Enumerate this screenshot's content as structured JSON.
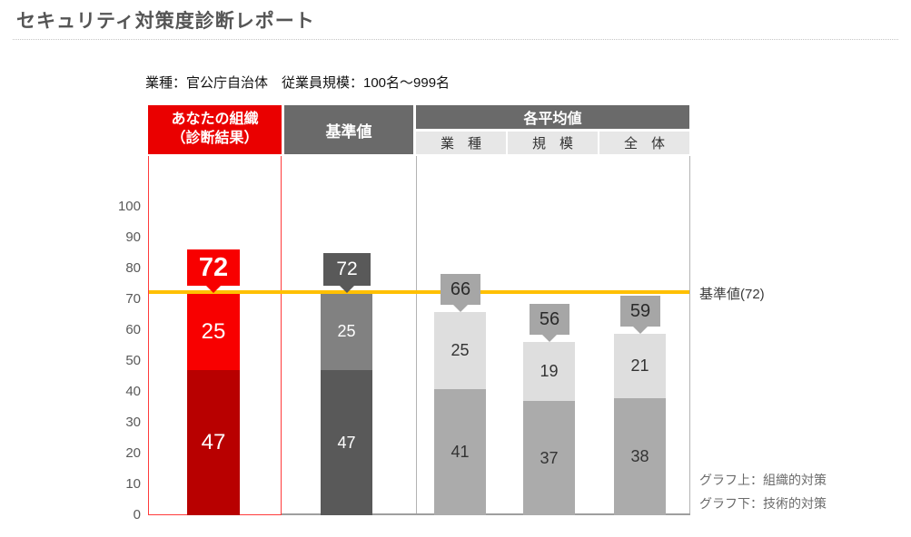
{
  "page_title": "セキュリティ対策度診断レポート",
  "subtitle": "業種：官公庁自治体　従業員規模：100名〜999名",
  "header": {
    "your_org_line1": "あなたの組織",
    "your_org_line2": "（診断結果）",
    "baseline": "基準値",
    "averages": "各平均値",
    "avg_columns": [
      "業　種",
      "規　模",
      "全　体"
    ]
  },
  "annotations": {
    "reference_line_label": "基準値(72)",
    "legend_top": "グラフ上：組織的対策",
    "legend_bottom": "グラフ下：技術的対策"
  },
  "colors": {
    "accent_red": "#ea0000",
    "bright_red": "#f80000",
    "dark_red": "#b80000",
    "header_gray": "#6a6a6a",
    "baseline_dark_gray": "#595959",
    "baseline_mid_gray": "#818181",
    "avg_light_gray": "#dedede",
    "avg_mid_gray": "#ababab",
    "avg_callout_gray": "#a6a6a6",
    "reference_line_yellow": "#ffc000"
  },
  "chart_data": {
    "type": "bar",
    "stacked": true,
    "title": "セキュリティ対策度診断レポート",
    "ylim": [
      0,
      100
    ],
    "y_ticks": [
      100,
      90,
      80,
      70,
      60,
      50,
      40,
      30,
      20,
      10,
      0
    ],
    "grid": false,
    "reference_line": {
      "value": 72,
      "label": "基準値(72)",
      "color": "#ffc000"
    },
    "segment_legend": {
      "top": "組織的対策",
      "bottom": "技術的対策"
    },
    "categories": [
      "あなたの組織（診断結果）",
      "基準値",
      "業種",
      "規模",
      "全体"
    ],
    "columns": [
      {
        "id": "your-org",
        "label": "あなたの組織（診断結果）",
        "total": 72,
        "top": 25,
        "bottom": 47
      },
      {
        "id": "baseline",
        "label": "基準値",
        "total": 72,
        "top": 25,
        "bottom": 47
      },
      {
        "id": "industry-avg",
        "label": "業種",
        "total": 66,
        "top": 25,
        "bottom": 41
      },
      {
        "id": "size-avg",
        "label": "規模",
        "total": 56,
        "top": 19,
        "bottom": 37
      },
      {
        "id": "overall-avg",
        "label": "全体",
        "total": 59,
        "top": 21,
        "bottom": 38
      }
    ]
  }
}
